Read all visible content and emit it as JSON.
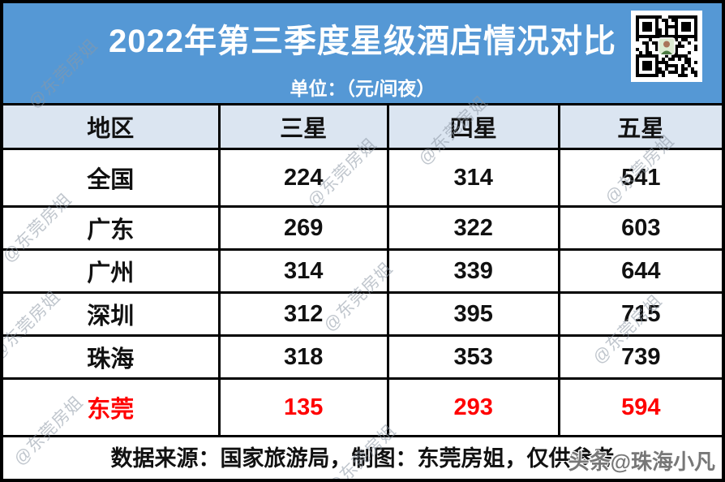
{
  "header": {
    "title": "2022年第三季度星级酒店情况对比",
    "subtitle": "单位：（元/间夜）"
  },
  "table": {
    "columns": [
      "地区",
      "三星",
      "四星",
      "五星"
    ],
    "rows": [
      {
        "region": "全国",
        "values": [
          "224",
          "314",
          "541"
        ]
      },
      {
        "region": "广东",
        "values": [
          "269",
          "322",
          "603"
        ]
      },
      {
        "region": "广州",
        "values": [
          "314",
          "339",
          "644"
        ]
      },
      {
        "region": "深圳",
        "values": [
          "312",
          "395",
          "715"
        ]
      },
      {
        "region": "珠海",
        "values": [
          "318",
          "353",
          "739"
        ]
      },
      {
        "region": "东莞",
        "values": [
          "135",
          "293",
          "594"
        ],
        "highlight": true
      }
    ]
  },
  "footer": {
    "note": "数据来源：国家旅游局，制图：东莞房姐，仅供参考"
  },
  "watermarks": {
    "diagonal": "@东莞房姐",
    "bottom_right": "头条@珠海小凡"
  },
  "icons": {
    "qr": "qr-code"
  },
  "colors": {
    "banner_blue": "#5598d5",
    "table_header_blue": "#dbe5f1",
    "highlight_red": "#ff0000",
    "border_black": "#000000"
  },
  "chart_data": {
    "type": "table",
    "title": "2022年第三季度星级酒店情况对比",
    "unit": "元/间夜",
    "columns": [
      "地区",
      "三星",
      "四星",
      "五星"
    ],
    "rows": [
      [
        "全国",
        224,
        314,
        541
      ],
      [
        "广东",
        269,
        322,
        603
      ],
      [
        "广州",
        314,
        339,
        644
      ],
      [
        "深圳",
        312,
        395,
        715
      ],
      [
        "珠海",
        318,
        353,
        739
      ],
      [
        "东莞",
        135,
        293,
        594
      ]
    ],
    "highlight_row": "东莞",
    "source_note": "数据来源：国家旅游局，制图：东莞房姐，仅供参考"
  }
}
